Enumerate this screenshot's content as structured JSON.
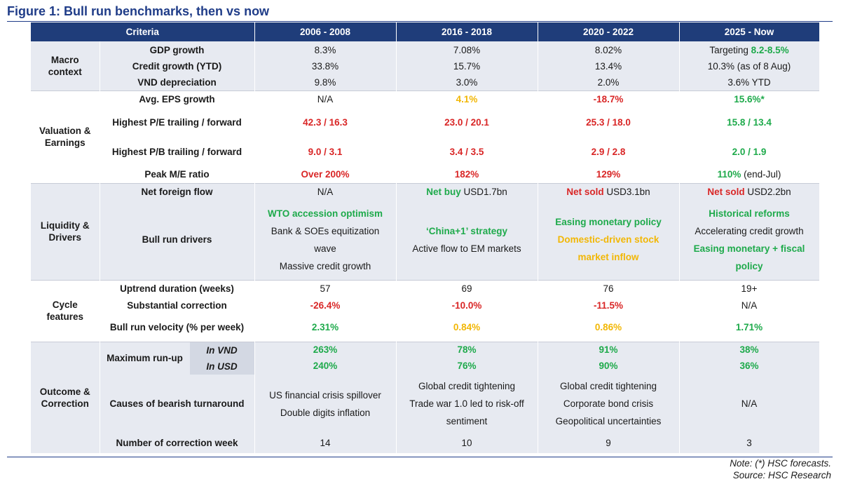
{
  "title": "Figure 1: Bull run benchmarks, then vs now",
  "headers": [
    "Criteria",
    "2006 - 2008",
    "2016 - 2018",
    "2020 - 2022",
    "2025 - Now"
  ],
  "groups": {
    "macro": "Macro context",
    "valuation": "Valuation & Earnings",
    "liquidity": "Liquidity & Drivers",
    "cycle": "Cycle features",
    "outcome": "Outcome & Correction"
  },
  "rows": {
    "gdp": {
      "label": "GDP growth",
      "c1": "8.3%",
      "c2": "7.08%",
      "c3": "8.02%",
      "c4_prefix": "Targeting ",
      "c4_value": "8.2-8.5%"
    },
    "credit": {
      "label": "Credit growth (YTD)",
      "c1": "33.8%",
      "c2": "15.7%",
      "c3": "13.4%",
      "c4": "10.3% (as of 8 Aug)"
    },
    "vnd": {
      "label": "VND depreciation",
      "c1": "9.8%",
      "c2": "3.0%",
      "c3": "2.0%",
      "c4": "3.6% YTD"
    },
    "eps": {
      "label": "Avg. EPS growth",
      "c1": "N/A",
      "c2": "4.1%",
      "c3": "-18.7%",
      "c4": "15.6%*"
    },
    "pe": {
      "label": "Highest P/E trailing / forward",
      "c1": "42.3 / 16.3",
      "c2": "23.0 / 20.1",
      "c3": "25.3 / 18.0",
      "c4": "15.8 / 13.4"
    },
    "pb": {
      "label": "Highest P/B trailing / forward",
      "c1": "9.0 / 3.1",
      "c2": "3.4 / 3.5",
      "c3": "2.9 /  2.8",
      "c4": "2.0 / 1.9"
    },
    "me": {
      "label": "Peak M/E ratio",
      "c1": "Over 200%",
      "c2": "182%",
      "c3": "129%",
      "c4_value": "110%",
      "c4_suffix": " (end-Jul)"
    },
    "foreign": {
      "label": "Net foreign flow",
      "c1": "N/A",
      "c2_label": "Net buy",
      "c2_value": " USD1.7bn",
      "c3_label": "Net sold",
      "c3_value": " USD3.1bn",
      "c4_label": "Net sold",
      "c4_value": " USD2.2bn"
    },
    "drivers": {
      "label": "Bull run drivers",
      "c1": [
        "WTO accession optimism",
        "Bank & SOEs equitization",
        "wave",
        "Massive credit growth"
      ],
      "c2": [
        "‘China+1’ strategy",
        "Active flow to EM markets"
      ],
      "c3": [
        "Easing monetary policy",
        "Domestic-driven stock",
        "market inflow"
      ],
      "c4": [
        "Historical reforms",
        "Accelerating credit growth",
        "Easing monetary + fiscal",
        "policy"
      ]
    },
    "uptrend": {
      "label": "Uptrend duration (weeks)",
      "c1": "57",
      "c2": "69",
      "c3": "76",
      "c4": "19+"
    },
    "correction": {
      "label": "Substantial correction",
      "c1": "-26.4%",
      "c2": "-10.0%",
      "c3": "-11.5%",
      "c4": "N/A"
    },
    "velocity": {
      "label": "Bull run velocity (% per week)",
      "c1": "2.31%",
      "c2": "0.84%",
      "c3": "0.86%",
      "c4": "1.71%"
    },
    "runup": {
      "label": "Maximum run-up",
      "vnd_label": "In VND",
      "vnd": [
        "263%",
        "78%",
        "91%",
        "38%"
      ],
      "usd_label": "In USD",
      "usd": [
        "240%",
        "76%",
        "90%",
        "36%"
      ]
    },
    "causes": {
      "label": "Causes of bearish turnaround",
      "c1": [
        "US financial crisis spillover",
        "Double digits inflation"
      ],
      "c2": [
        "Global credit tightening",
        "Trade war 1.0 led to risk-off",
        "sentiment"
      ],
      "c3": [
        "Global credit tightening",
        "Corporate bond crisis",
        "Geopolitical uncertainties"
      ],
      "c4": "N/A"
    },
    "weeks": {
      "label": "Number of correction week",
      "c1": "14",
      "c2": "10",
      "c3": "9",
      "c4": "3"
    }
  },
  "notes": {
    "line1": "Note: (*) HSC forecasts.",
    "line2": "Source: HSC Research"
  },
  "colors": {
    "header_bg": "#1f3d7a",
    "shade": "#e7eaf1",
    "red": "#d92626",
    "green": "#1eaa4b",
    "yellow": "#f2b705",
    "title": "#1f3c88"
  }
}
